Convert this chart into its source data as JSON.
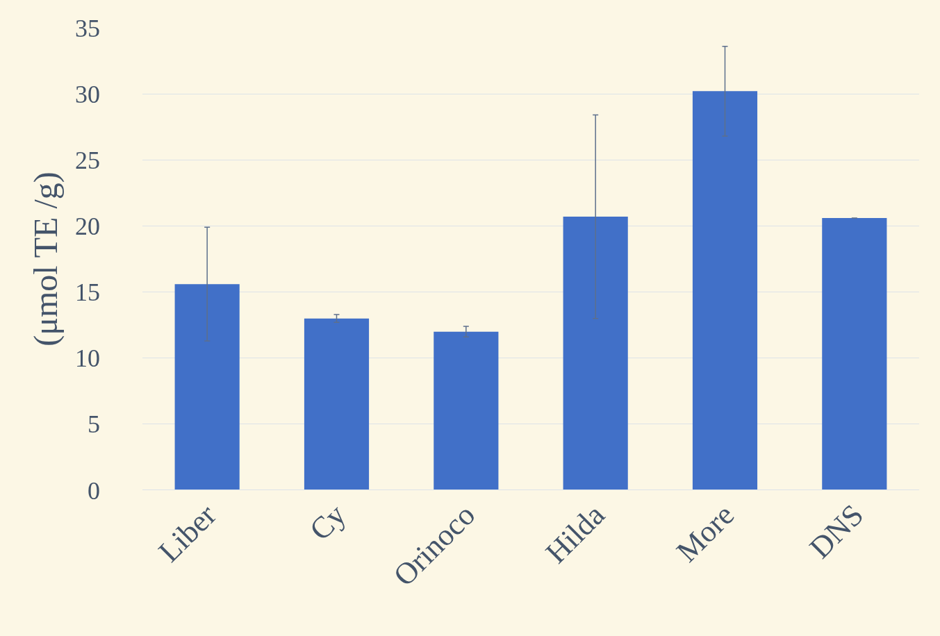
{
  "chart_data": {
    "type": "bar",
    "ylabel": "(μmol TE /g)",
    "categories": [
      "Liber",
      "Cy",
      "Orinoco",
      "Hilda",
      "More",
      "DNS"
    ],
    "values": [
      15.6,
      13.0,
      12.0,
      20.7,
      30.2,
      20.6
    ],
    "errors": [
      4.3,
      0.3,
      0.4,
      7.7,
      3.4,
      null
    ],
    "color": "#4170c8",
    "ylim": [
      0,
      35
    ],
    "yticks": [
      0,
      5,
      10,
      15,
      20,
      25,
      30,
      35
    ],
    "grid": "y"
  }
}
